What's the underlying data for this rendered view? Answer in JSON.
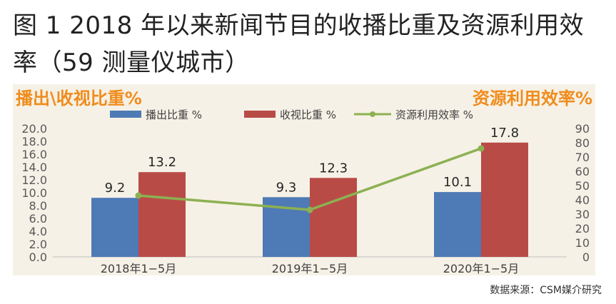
{
  "figure": {
    "title": "图 1 2018 年以来新闻节目的收播比重及资源利用效率（59 测量仪城市）",
    "source": "数据来源：CSM媒介研究"
  },
  "colors": {
    "panel_bg": "#f6f1e6",
    "axis_title": "#f08c1c",
    "bar_broadcast": "#4e7ab5",
    "bar_viewing": "#b94b47",
    "line_efficiency": "#8cb152",
    "tick_text": "#595959"
  },
  "chart_data": {
    "type": "bar",
    "categories": [
      "2018年1−5月",
      "2019年1−5月",
      "2020年1−5月"
    ],
    "series": [
      {
        "name": "播出比重 %",
        "type": "bar",
        "axis": "left",
        "values": [
          9.2,
          9.3,
          10.1
        ],
        "labels": [
          "9.2",
          "9.3",
          "10.1"
        ]
      },
      {
        "name": "收视比重 %",
        "type": "bar",
        "axis": "left",
        "values": [
          13.2,
          12.3,
          17.8
        ],
        "labels": [
          "13.2",
          "12.3",
          "17.8"
        ]
      },
      {
        "name": "资源利用效率 %",
        "type": "line",
        "axis": "right",
        "values": [
          43,
          33,
          76
        ]
      }
    ],
    "left_axis": {
      "title": "播出\\收视比重%",
      "ylim": [
        0,
        20
      ],
      "ticks": [
        "0.0",
        "2.0",
        "4.0",
        "6.0",
        "8.0",
        "10.0",
        "12.0",
        "14.0",
        "16.0",
        "18.0",
        "20.0"
      ]
    },
    "right_axis": {
      "title": "资源利用效率%",
      "ylim": [
        0,
        90
      ],
      "ticks": [
        "0",
        "10",
        "20",
        "30",
        "40",
        "50",
        "60",
        "70",
        "80",
        "90"
      ]
    },
    "legend_position": "top",
    "grid": false
  }
}
